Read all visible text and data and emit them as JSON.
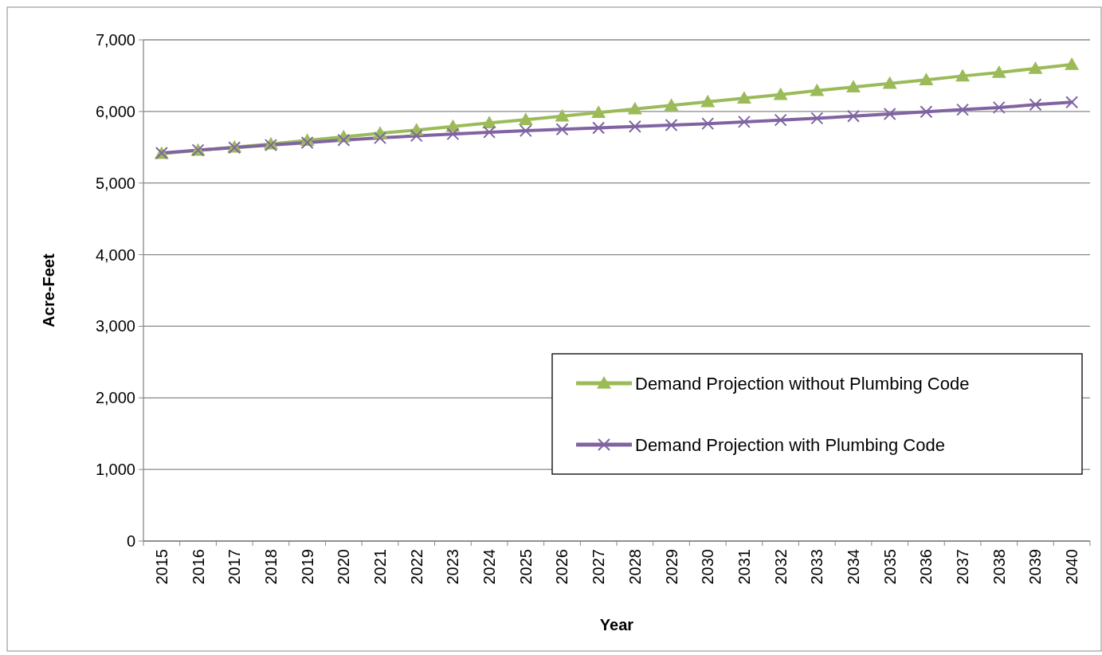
{
  "chart_data": {
    "type": "line",
    "xlabel": "Year",
    "ylabel": "Acre-Feet",
    "categories": [
      "2015",
      "2016",
      "2017",
      "2018",
      "2019",
      "2020",
      "2021",
      "2022",
      "2023",
      "2024",
      "2025",
      "2026",
      "2027",
      "2028",
      "2029",
      "2030",
      "2031",
      "2032",
      "2033",
      "2034",
      "2035",
      "2036",
      "2037",
      "2038",
      "2039",
      "2040"
    ],
    "series": [
      {
        "name": "Demand Projection without Plumbing Code",
        "color": "#9bbb59",
        "marker": "triangle",
        "values": [
          5410,
          5455,
          5500,
          5545,
          5595,
          5645,
          5695,
          5740,
          5790,
          5840,
          5885,
          5935,
          5985,
          6035,
          6085,
          6135,
          6185,
          6235,
          6290,
          6340,
          6390,
          6440,
          6495,
          6545,
          6600,
          6655
        ]
      },
      {
        "name": "Demand Projection with Plumbing Code",
        "color": "#8064a2",
        "marker": "cross",
        "values": [
          5420,
          5460,
          5495,
          5530,
          5565,
          5600,
          5630,
          5660,
          5685,
          5710,
          5730,
          5750,
          5770,
          5790,
          5810,
          5830,
          5855,
          5880,
          5905,
          5935,
          5965,
          5995,
          6025,
          6055,
          6095,
          6130
        ]
      }
    ],
    "ylim": [
      0,
      7000
    ],
    "yticks": [
      {
        "value": 0,
        "label": "0"
      },
      {
        "value": 1000,
        "label": "1,000"
      },
      {
        "value": 2000,
        "label": "2,000"
      },
      {
        "value": 3000,
        "label": "3,000"
      },
      {
        "value": 4000,
        "label": "4,000"
      },
      {
        "value": 5000,
        "label": "5,000"
      },
      {
        "value": 6000,
        "label": "6,000"
      },
      {
        "value": 7000,
        "label": "7,000"
      }
    ],
    "grid": "y",
    "legend": "right",
    "line_style": "solid"
  }
}
